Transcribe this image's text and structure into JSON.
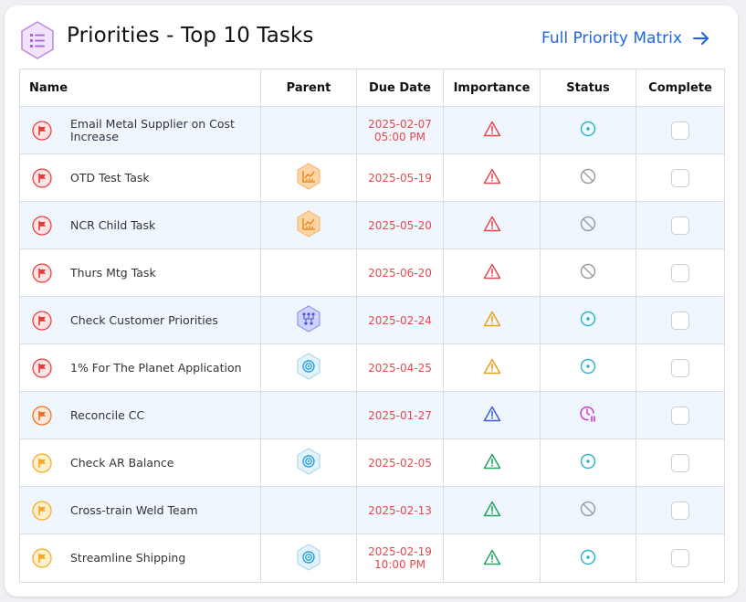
{
  "header": {
    "title": "Priorities - Top 10 Tasks",
    "link_label": "Full Priority Matrix",
    "icon": "list-check-icon"
  },
  "columns": {
    "name": "Name",
    "parent": "Parent",
    "due_date": "Due Date",
    "importance": "Importance",
    "status": "Status",
    "complete": "Complete"
  },
  "colors": {
    "accent": "#1f66e6",
    "due_text": "#e5484d",
    "row_shade": "#f0f6fd",
    "flag_red": "#e53935",
    "flag_orange": "#ef6c1a",
    "flag_yellow": "#f5a623",
    "importance_red": "#e5484d",
    "importance_amber": "#e3a21a",
    "importance_blue": "#3b5fd6",
    "importance_green": "#22a45d",
    "status_open": "#2bb3c9",
    "status_blocked": "#9aa0a6",
    "status_overdue": "#d63ad0"
  },
  "tasks": [
    {
      "name": "Email Metal Supplier on Cost Increase",
      "flag": "red",
      "parent": "",
      "due": "2025-02-07",
      "due_time": "05:00 PM",
      "importance": "red",
      "status": "open",
      "complete": false
    },
    {
      "name": "OTD Test Task",
      "flag": "red",
      "parent": "chart-icon",
      "due": "2025-05-19",
      "due_time": "",
      "importance": "red",
      "status": "blocked",
      "complete": false
    },
    {
      "name": "NCR Child Task",
      "flag": "red",
      "parent": "chart-icon",
      "due": "2025-05-20",
      "due_time": "",
      "importance": "red",
      "status": "blocked",
      "complete": false
    },
    {
      "name": "Thurs Mtg Task",
      "flag": "red",
      "parent": "",
      "due": "2025-06-20",
      "due_time": "",
      "importance": "red",
      "status": "blocked",
      "complete": false
    },
    {
      "name": "Check Customer Priorities",
      "flag": "red",
      "parent": "network-icon",
      "due": "2025-02-24",
      "due_time": "",
      "importance": "amber",
      "status": "open",
      "complete": false
    },
    {
      "name": "1% For The Planet Application",
      "flag": "red",
      "parent": "target-icon",
      "due": "2025-04-25",
      "due_time": "",
      "importance": "amber",
      "status": "open",
      "complete": false
    },
    {
      "name": "Reconcile CC",
      "flag": "orange",
      "parent": "",
      "due": "2025-01-27",
      "due_time": "",
      "importance": "blue",
      "status": "overdue",
      "complete": false
    },
    {
      "name": "Check AR Balance",
      "flag": "yellow",
      "parent": "target-icon",
      "due": "2025-02-05",
      "due_time": "",
      "importance": "green",
      "status": "open",
      "complete": false
    },
    {
      "name": "Cross-train Weld Team",
      "flag": "yellow",
      "parent": "",
      "due": "2025-02-13",
      "due_time": "",
      "importance": "green",
      "status": "blocked",
      "complete": false
    },
    {
      "name": "Streamline Shipping",
      "flag": "yellow",
      "parent": "target-icon",
      "due": "2025-02-19",
      "due_time": "10:00 PM",
      "importance": "green",
      "status": "open",
      "complete": false
    }
  ]
}
